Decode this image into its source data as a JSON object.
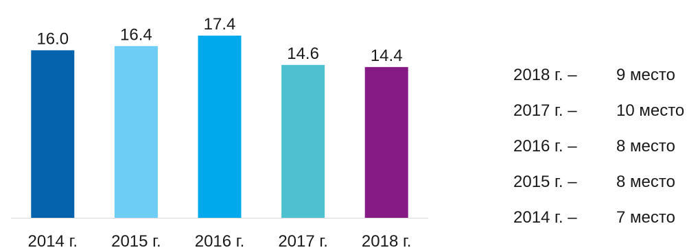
{
  "chart_data": {
    "type": "bar",
    "categories": [
      "2014 г.",
      "2015 г.",
      "2016 г.",
      "2017 г.",
      "2018 г."
    ],
    "values": [
      16.0,
      16.4,
      17.4,
      14.6,
      14.4
    ],
    "value_labels": [
      "16.0",
      "16.4",
      "17.4",
      "14.6",
      "14.4"
    ],
    "colors": [
      "#0563ad",
      "#6ecdf5",
      "#00a9ec",
      "#4dc1cf",
      "#861b86"
    ],
    "ylim": [
      0,
      17.4
    ],
    "grid": false,
    "title": "",
    "xlabel": "",
    "ylabel": ""
  },
  "ranking": [
    {
      "year": "2018 г. –",
      "place": "9 место"
    },
    {
      "year": "2017 г. –",
      "place": "10 место"
    },
    {
      "year": "2016 г. –",
      "place": "8 место"
    },
    {
      "year": "2015 г. –",
      "place": "8 место"
    },
    {
      "year": "2014 г. –",
      "place": "7 место"
    }
  ]
}
